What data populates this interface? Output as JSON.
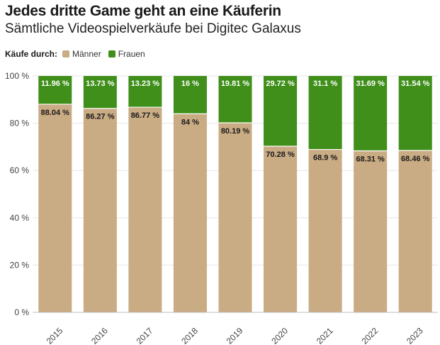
{
  "header": {
    "title": "Jedes dritte Game geht an eine Käuferin",
    "subtitle": "Sämtliche Videospielverkäufe bei Digitec Galaxus"
  },
  "legend": {
    "title": "Käufe durch:",
    "items": [
      {
        "label": "Männer",
        "color": "#c9ab84"
      },
      {
        "label": "Frauen",
        "color": "#3f8f1a"
      }
    ]
  },
  "chart_data": {
    "type": "bar",
    "stacked": true,
    "categories": [
      "2015",
      "2016",
      "2017",
      "2018",
      "2019",
      "2020",
      "2021",
      "2022",
      "2023"
    ],
    "series": [
      {
        "name": "Männer",
        "color": "#c9ab84",
        "values": [
          88.04,
          86.27,
          86.77,
          84,
          80.19,
          70.28,
          68.9,
          68.31,
          68.46
        ],
        "labels": [
          "88.04 %",
          "86.27 %",
          "86.77 %",
          "84 %",
          "80.19 %",
          "70.28 %",
          "68.9 %",
          "68.31 %",
          "68.46 %"
        ]
      },
      {
        "name": "Frauen",
        "color": "#3f8f1a",
        "values": [
          11.96,
          13.73,
          13.23,
          16,
          19.81,
          29.72,
          31.1,
          31.69,
          31.54
        ],
        "labels": [
          "11.96 %",
          "13.73 %",
          "13.23 %",
          "16 %",
          "19.81 %",
          "29.72 %",
          "31.1 %",
          "31.69 %",
          "31.54 %"
        ]
      }
    ],
    "ylim": [
      0,
      100
    ],
    "yticks": [
      0,
      20,
      40,
      60,
      80,
      100
    ],
    "ytick_labels": [
      "0 %",
      "20 %",
      "40 %",
      "60 %",
      "80 %",
      "100 %"
    ],
    "grid": true
  }
}
